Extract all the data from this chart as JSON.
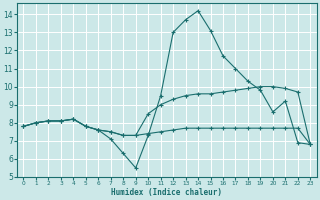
{
  "xlabel": "Humidex (Indice chaleur)",
  "background_color": "#cce8e8",
  "grid_color": "#ffffff",
  "line_color": "#1a6e6e",
  "xlim": [
    -0.5,
    23.5
  ],
  "ylim": [
    5,
    14.6
  ],
  "yticks": [
    5,
    6,
    7,
    8,
    9,
    10,
    11,
    12,
    13,
    14
  ],
  "xticks": [
    0,
    1,
    2,
    3,
    4,
    5,
    6,
    7,
    8,
    9,
    10,
    11,
    12,
    13,
    14,
    15,
    16,
    17,
    18,
    19,
    20,
    21,
    22,
    23
  ],
  "line1_x": [
    0,
    1,
    2,
    3,
    4,
    5,
    6,
    7,
    8,
    9,
    10,
    11,
    12,
    13,
    14,
    15,
    16,
    17,
    18,
    19,
    20,
    21,
    22,
    23
  ],
  "line1_y": [
    7.8,
    8.0,
    8.1,
    8.1,
    8.2,
    7.8,
    7.6,
    7.1,
    6.3,
    5.5,
    7.3,
    9.5,
    13.0,
    13.7,
    14.2,
    13.1,
    11.7,
    11.0,
    10.3,
    9.8,
    8.6,
    9.2,
    6.9,
    6.8
  ],
  "line2_x": [
    0,
    1,
    2,
    3,
    4,
    5,
    6,
    7,
    8,
    9,
    10,
    11,
    12,
    13,
    14,
    15,
    16,
    17,
    18,
    19,
    20,
    21,
    22,
    23
  ],
  "line2_y": [
    7.8,
    8.0,
    8.1,
    8.1,
    8.2,
    7.8,
    7.6,
    7.5,
    7.3,
    7.3,
    7.4,
    7.5,
    7.6,
    7.7,
    7.7,
    7.7,
    7.7,
    7.7,
    7.7,
    7.7,
    7.7,
    7.7,
    7.7,
    6.8
  ],
  "line3_x": [
    0,
    1,
    2,
    3,
    4,
    5,
    6,
    7,
    8,
    9,
    10,
    11,
    12,
    13,
    14,
    15,
    16,
    17,
    18,
    19,
    20,
    21,
    22,
    23
  ],
  "line3_y": [
    7.8,
    8.0,
    8.1,
    8.1,
    8.2,
    7.8,
    7.6,
    7.5,
    7.3,
    7.3,
    8.5,
    9.0,
    9.3,
    9.5,
    9.6,
    9.6,
    9.7,
    9.8,
    9.9,
    10.0,
    10.0,
    9.9,
    9.7,
    6.8
  ]
}
